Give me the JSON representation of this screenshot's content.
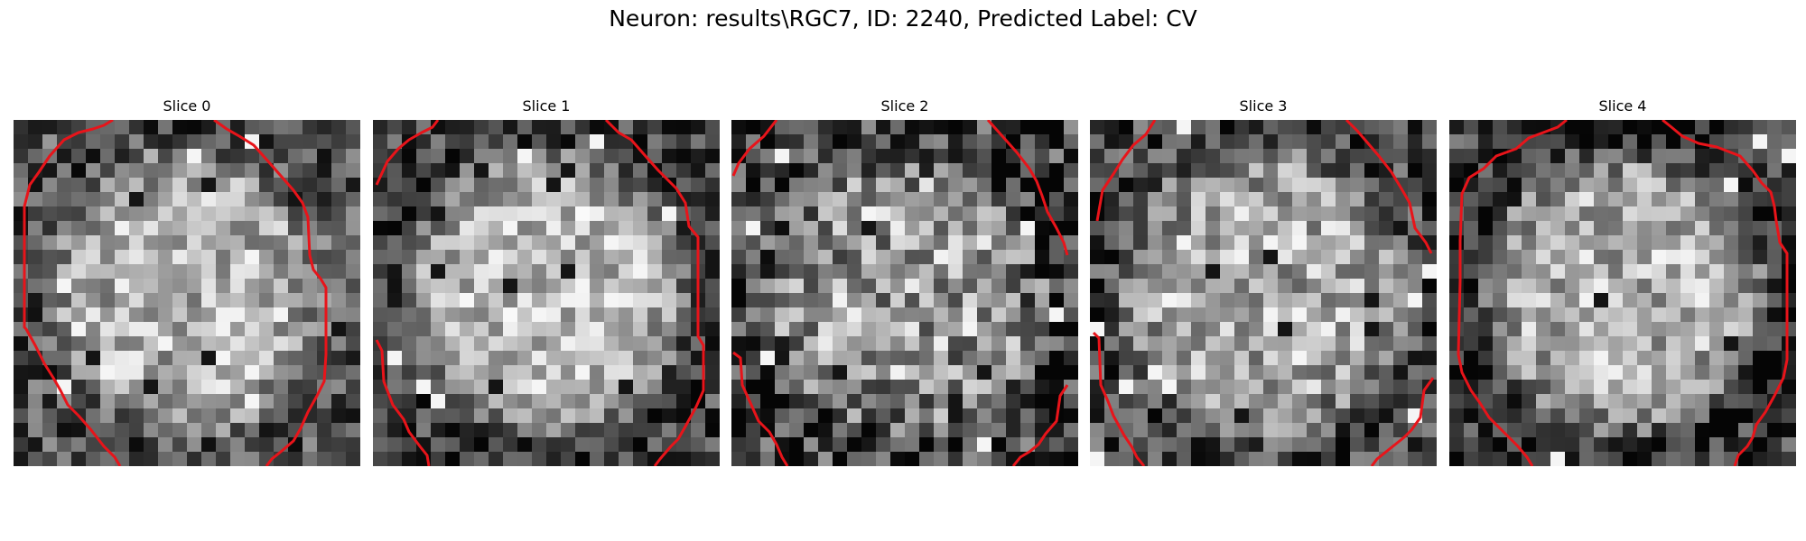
{
  "figure": {
    "title": "Neuron: results\\RGC7, ID: 2240, Predicted Label: CV"
  },
  "contour_color": "#e8141a",
  "slices": [
    {
      "title": "Slice 0"
    },
    {
      "title": "Slice 1"
    },
    {
      "title": "Slice 2"
    },
    {
      "title": "Slice 3"
    },
    {
      "title": "Slice 4"
    }
  ]
}
